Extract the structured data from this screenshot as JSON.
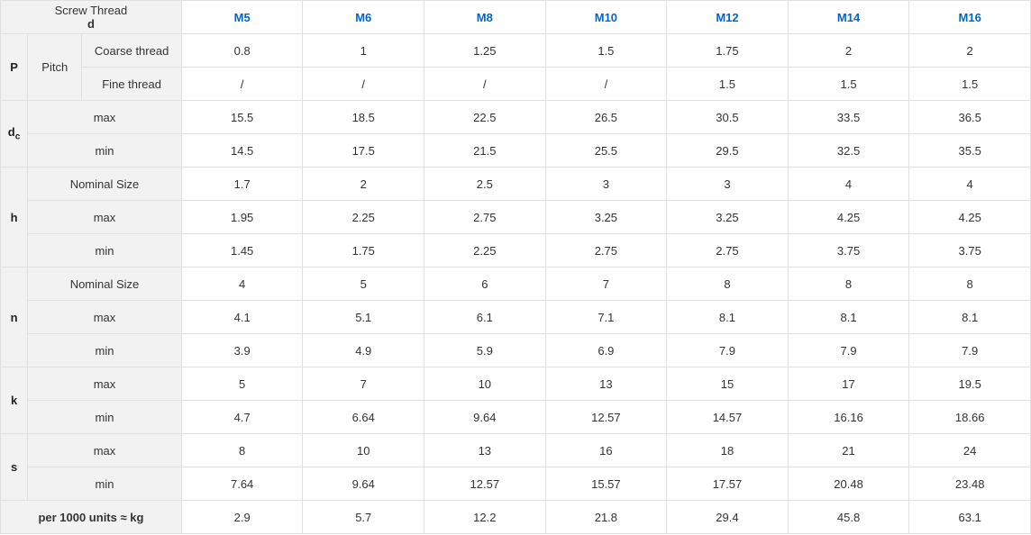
{
  "accent_color": "#0066cc",
  "header_bg": "#f2f2f2",
  "border_color": "#e0e0e0",
  "screw_thread_label": "Screw Thread",
  "d_label": "d",
  "sizes": [
    "M5",
    "M6",
    "M8",
    "M10",
    "M12",
    "M14",
    "M16"
  ],
  "groups": [
    {
      "symbol": "P",
      "mid": "Pitch",
      "rows": [
        {
          "label": "Coarse thread",
          "vals": [
            "0.8",
            "1",
            "1.25",
            "1.5",
            "1.75",
            "2",
            "2"
          ]
        },
        {
          "label": "Fine thread",
          "vals": [
            "/",
            "/",
            "/",
            "/",
            "1.5",
            "1.5",
            "1.5"
          ]
        }
      ]
    },
    {
      "symbol_html": "d<span class='sub'>c</span>",
      "rows": [
        {
          "label": "max",
          "vals": [
            "15.5",
            "18.5",
            "22.5",
            "26.5",
            "30.5",
            "33.5",
            "36.5"
          ]
        },
        {
          "label": "min",
          "vals": [
            "14.5",
            "17.5",
            "21.5",
            "25.5",
            "29.5",
            "32.5",
            "35.5"
          ]
        }
      ]
    },
    {
      "symbol": "h",
      "rows": [
        {
          "label": "Nominal Size",
          "vals": [
            "1.7",
            "2",
            "2.5",
            "3",
            "3",
            "4",
            "4"
          ]
        },
        {
          "label": "max",
          "vals": [
            "1.95",
            "2.25",
            "2.75",
            "3.25",
            "3.25",
            "4.25",
            "4.25"
          ]
        },
        {
          "label": "min",
          "vals": [
            "1.45",
            "1.75",
            "2.25",
            "2.75",
            "2.75",
            "3.75",
            "3.75"
          ]
        }
      ]
    },
    {
      "symbol": "n",
      "rows": [
        {
          "label": "Nominal Size",
          "vals": [
            "4",
            "5",
            "6",
            "7",
            "8",
            "8",
            "8"
          ]
        },
        {
          "label": "max",
          "vals": [
            "4.1",
            "5.1",
            "6.1",
            "7.1",
            "8.1",
            "8.1",
            "8.1"
          ]
        },
        {
          "label": "min",
          "vals": [
            "3.9",
            "4.9",
            "5.9",
            "6.9",
            "7.9",
            "7.9",
            "7.9"
          ]
        }
      ]
    },
    {
      "symbol": "k",
      "rows": [
        {
          "label": "max",
          "vals": [
            "5",
            "7",
            "10",
            "13",
            "15",
            "17",
            "19.5"
          ]
        },
        {
          "label": "min",
          "vals": [
            "4.7",
            "6.64",
            "9.64",
            "12.57",
            "14.57",
            "16.16",
            "18.66"
          ]
        }
      ]
    },
    {
      "symbol": "s",
      "rows": [
        {
          "label": "max",
          "vals": [
            "8",
            "10",
            "13",
            "16",
            "18",
            "21",
            "24"
          ]
        },
        {
          "label": "min",
          "vals": [
            "7.64",
            "9.64",
            "12.57",
            "15.57",
            "17.57",
            "20.48",
            "23.48"
          ]
        }
      ]
    }
  ],
  "footer": {
    "label": "per 1000 units ≈ kg",
    "vals": [
      "2.9",
      "5.7",
      "12.2",
      "21.8",
      "29.4",
      "45.8",
      "63.1"
    ]
  },
  "col_widths": {
    "col1": 30,
    "col2": 60,
    "col3": 110,
    "data": 134
  }
}
